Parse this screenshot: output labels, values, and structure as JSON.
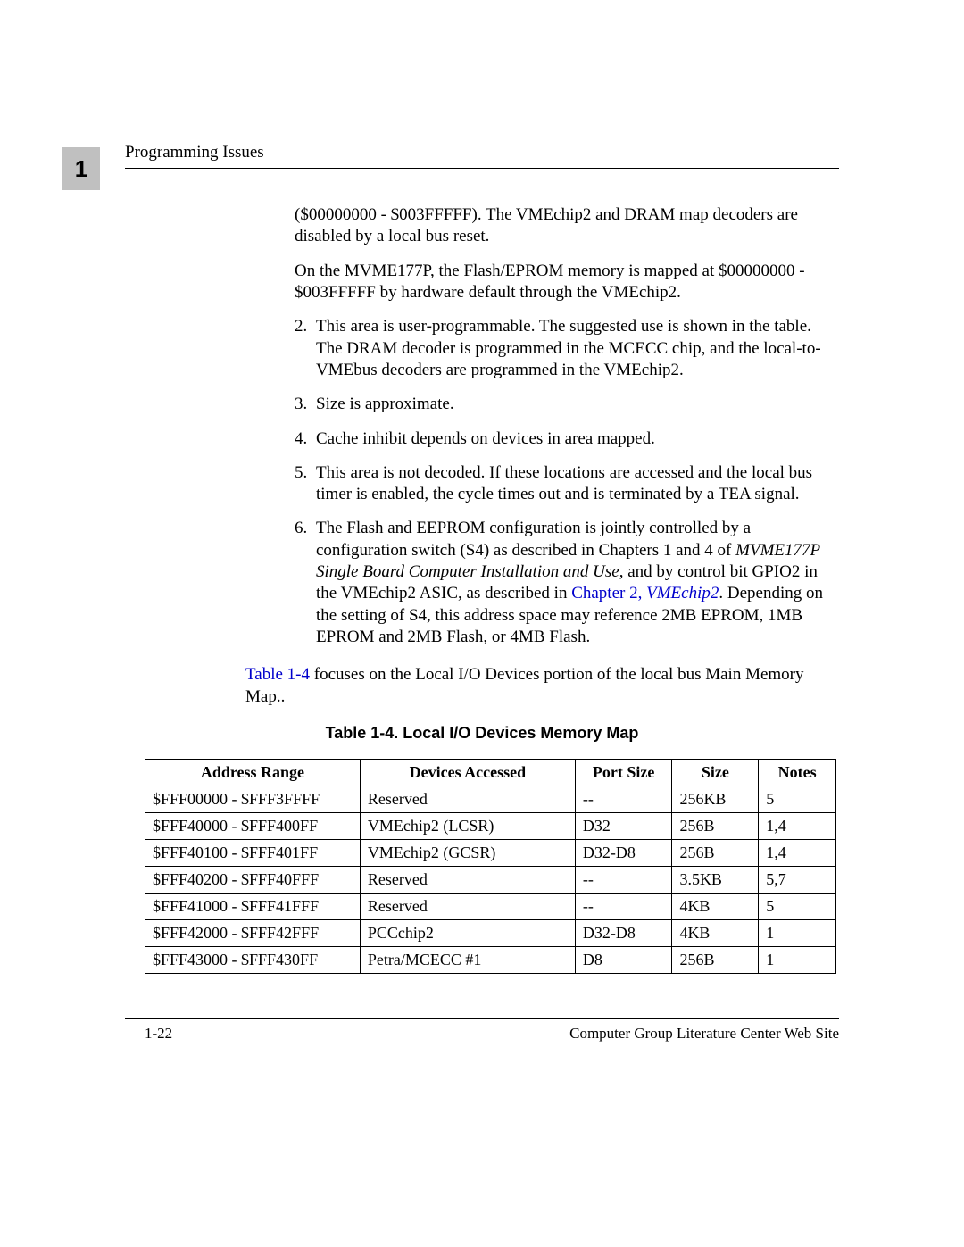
{
  "chapter_number": "1",
  "header_title": "Programming Issues",
  "content": {
    "p1a": "($00000000 - $003FFFFF). The VMEchip2 and DRAM map decoders are disabled by a local bus reset.",
    "p1b": "On the MVME177P, the Flash/EPROM memory is mapped at $00000000 - $003FFFFF by hardware default through the VMEchip2.",
    "n2_num": "2.",
    "n2": "This area is user-programmable. The suggested use is shown in the table. The DRAM decoder is programmed in the MCECC chip, and the local-to-VMEbus decoders are programmed in the VMEchip2.",
    "n3_num": "3.",
    "n3": "Size is approximate.",
    "n4_num": "4.",
    "n4": "Cache inhibit depends on devices in area mapped.",
    "n5_num": "5.",
    "n5": "This area is not decoded. If these locations are accessed and the local bus timer is enabled, the cycle times out and is terminated by a TEA signal.",
    "n6_num": "6.",
    "n6_part1": "The Flash and EEPROM configuration is jointly controlled by a configuration switch (S4) as described in Chapters 1 and 4  of ",
    "n6_italic": "MVME177P Single Board Computer Installation and Use",
    "n6_part2": ", and by control bit GPIO2 in the VMEchip2 ASIC, as described in ",
    "n6_link": "Chapter 2, ",
    "n6_link_italic": "VMEchip2",
    "n6_part3": ". Depending on the setting of S4, this address space may reference 2MB EPROM, 1MB EPROM and 2MB Flash, or 4MB Flash.",
    "intro_link": "Table 1-4",
    "intro_rest": " focuses on the Local I/O Devices portion of the local bus Main Memory Map.."
  },
  "table": {
    "caption": "Table 1-4.  Local I/O Devices Memory Map",
    "headers": {
      "addr": "Address Range",
      "dev": "Devices Accessed",
      "port": "Port Size",
      "size": "Size",
      "notes": "Notes"
    },
    "rows": [
      {
        "addr": "$FFF00000 - $FFF3FFFF",
        "dev": "Reserved",
        "port": "--",
        "size": "256KB",
        "notes": "5"
      },
      {
        "addr": "$FFF40000 - $FFF400FF",
        "dev": "VMEchip2 (LCSR)",
        "port": "D32",
        "size": "256B",
        "notes": "1,4"
      },
      {
        "addr": "$FFF40100 - $FFF401FF",
        "dev": "VMEchip2 (GCSR)",
        "port": "D32-D8",
        "size": "256B",
        "notes": "1,4"
      },
      {
        "addr": "$FFF40200 - $FFF40FFF",
        "dev": "Reserved",
        "port": "--",
        "size": "3.5KB",
        "notes": "5,7"
      },
      {
        "addr": "$FFF41000 - $FFF41FFF",
        "dev": "Reserved",
        "port": "--",
        "size": "4KB",
        "notes": "5"
      },
      {
        "addr": "$FFF42000 - $FFF42FFF",
        "dev": "PCCchip2",
        "port": "D32-D8",
        "size": "4KB",
        "notes": "1"
      },
      {
        "addr": "$FFF43000 - $FFF430FF",
        "dev": "Petra/MCECC #1",
        "port": "D8",
        "size": "256B",
        "notes": "1"
      }
    ]
  },
  "footer": {
    "page": "1-22",
    "site": "Computer Group Literature Center Web Site"
  },
  "colors": {
    "link": "#0000cc",
    "chapter_bg": "#c0c0c0",
    "text": "#000000",
    "background": "#ffffff"
  }
}
